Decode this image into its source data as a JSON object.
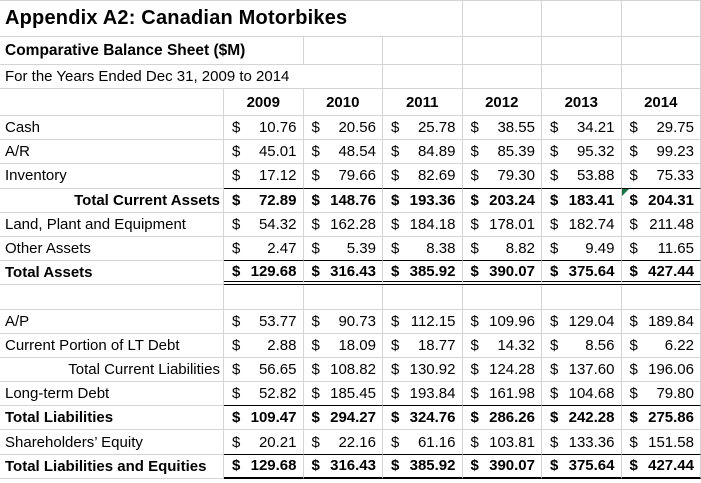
{
  "header": {
    "title": "Appendix A2: Canadian Motorbikes",
    "subtitle": "Comparative Balance Sheet ($M)",
    "period": "For the Years Ended Dec 31, 2009 to 2014"
  },
  "table": {
    "currency_symbol": "$",
    "years": [
      "2009",
      "2010",
      "2011",
      "2012",
      "2013",
      "2014"
    ],
    "rows": [
      {
        "label": "Cash",
        "values": [
          "10.76",
          "20.56",
          "25.78",
          "38.55",
          "34.21",
          "29.75"
        ]
      },
      {
        "label": "A/R",
        "values": [
          "45.01",
          "48.54",
          "84.89",
          "85.39",
          "95.32",
          "99.23"
        ]
      },
      {
        "label": "Inventory",
        "values": [
          "17.12",
          "79.66",
          "82.69",
          "79.30",
          "53.88",
          "75.33"
        ],
        "underline": "single"
      },
      {
        "label": "Total Current Assets",
        "values": [
          "72.89",
          "148.76",
          "193.36",
          "203.24",
          "183.41",
          "204.31"
        ],
        "bold": true,
        "label_align": "right",
        "flag_col": 5
      },
      {
        "label": "Land, Plant and Equipment",
        "values": [
          "54.32",
          "162.28",
          "184.18",
          "178.01",
          "182.74",
          "211.48"
        ]
      },
      {
        "label": "Other Assets",
        "values": [
          "2.47",
          "5.39",
          "8.38",
          "8.82",
          "9.49",
          "11.65"
        ],
        "underline": "single"
      },
      {
        "label": "Total Assets",
        "values": [
          "129.68",
          "316.43",
          "385.92",
          "390.07",
          "375.64",
          "427.44"
        ],
        "bold": true,
        "underline": "double"
      },
      {
        "label": "",
        "values": [
          "",
          "",
          "",
          "",
          "",
          ""
        ],
        "spacer": true
      },
      {
        "label": "A/P",
        "values": [
          "53.77",
          "90.73",
          "112.15",
          "109.96",
          "129.04",
          "189.84"
        ]
      },
      {
        "label": "Current Portion of LT Debt",
        "values": [
          "2.88",
          "18.09",
          "18.77",
          "14.32",
          "8.56",
          "6.22"
        ]
      },
      {
        "label": "Total Current Liabilities",
        "values": [
          "56.65",
          "108.82",
          "130.92",
          "124.28",
          "137.60",
          "196.06"
        ],
        "label_align": "right"
      },
      {
        "label": "Long-term Debt",
        "values": [
          "52.82",
          "185.45",
          "193.84",
          "161.98",
          "104.68",
          "79.80"
        ],
        "underline": "single"
      },
      {
        "label": "Total Liabilities",
        "values": [
          "109.47",
          "294.27",
          "324.76",
          "286.26",
          "242.28",
          "275.86"
        ],
        "bold": true
      },
      {
        "label": "Shareholders’ Equity",
        "values": [
          "20.21",
          "22.16",
          "61.16",
          "103.81",
          "133.36",
          "151.58"
        ],
        "underline": "single"
      },
      {
        "label": "Total Liabilities and Equities",
        "values": [
          "129.68",
          "316.43",
          "385.92",
          "390.07",
          "375.64",
          "427.44"
        ],
        "bold": true,
        "underline": "thick"
      }
    ]
  }
}
